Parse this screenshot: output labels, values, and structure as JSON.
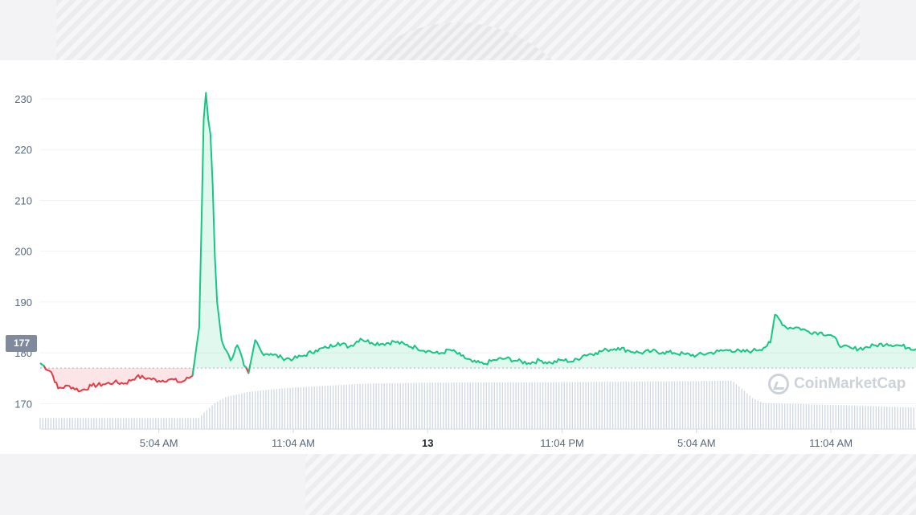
{
  "watermark": "CoinMarketCap",
  "current_price_label": "177",
  "colors": {
    "up": "#16c784",
    "down": "#ea3943",
    "grid": "#eff2f5",
    "axis_text": "#58667e",
    "volume": "#cfd6e4",
    "reference": "#a6b0c3"
  },
  "chart_data": {
    "type": "line",
    "title": "",
    "xlabel": "",
    "ylabel": "",
    "ylim": [
      165,
      233
    ],
    "y_ticks": [
      170,
      180,
      190,
      200,
      210,
      220,
      230
    ],
    "x_ticks": [
      {
        "t": 5.0,
        "label": "5:04 AM",
        "bold": false
      },
      {
        "t": 11.0,
        "label": "11:04 AM",
        "bold": false
      },
      {
        "t": 17.0,
        "label": "13",
        "bold": true
      },
      {
        "t": 23.0,
        "label": "11:04 PM",
        "bold": false
      },
      {
        "t": 29.0,
        "label": "5:04 AM",
        "bold": false
      },
      {
        "t": 35.0,
        "label": "11:04 AM",
        "bold": false
      }
    ],
    "x_range": [
      -0.3,
      38.8
    ],
    "reference_price": 177,
    "grid": true,
    "series": [
      {
        "name": "",
        "x": [
          -0.3,
          0.2,
          0.5,
          1.0,
          1.5,
          2.0,
          2.5,
          3.0,
          3.5,
          4.0,
          4.5,
          5.0,
          5.5,
          6.0,
          6.5,
          6.8,
          6.9,
          7.0,
          7.1,
          7.2,
          7.3,
          7.4,
          7.5,
          7.6,
          7.8,
          8.0,
          8.2,
          8.5,
          8.8,
          9.0,
          9.3,
          9.6,
          10.0,
          10.5,
          11.0,
          11.5,
          12.0,
          12.5,
          13.0,
          13.5,
          14.0,
          14.5,
          15.0,
          15.5,
          16.0,
          16.5,
          17.0,
          17.5,
          18.0,
          18.5,
          19.0,
          19.5,
          20.0,
          20.5,
          21.0,
          21.5,
          22.0,
          22.5,
          23.0,
          23.5,
          24.0,
          24.5,
          25.0,
          25.5,
          26.0,
          26.5,
          27.0,
          27.5,
          28.0,
          28.5,
          29.0,
          29.5,
          30.0,
          30.5,
          31.0,
          31.5,
          32.0,
          32.3,
          32.5,
          33.0,
          33.5,
          34.0,
          34.5,
          35.0,
          35.5,
          36.0,
          36.5,
          37.0,
          37.5,
          38.0,
          38.5,
          38.8
        ],
        "values": [
          178.0,
          176.2,
          173.0,
          173.5,
          172.5,
          173.5,
          173.8,
          174.2,
          174.0,
          175.3,
          175.0,
          174.5,
          174.8,
          174.2,
          175.5,
          185.0,
          205.0,
          226.0,
          231.2,
          226.0,
          223.0,
          213.0,
          199.0,
          190.0,
          182.5,
          180.5,
          178.5,
          181.5,
          177.5,
          176.0,
          182.5,
          180.0,
          179.8,
          179.0,
          178.8,
          179.5,
          180.5,
          181.0,
          182.0,
          181.2,
          182.8,
          182.0,
          181.8,
          182.2,
          181.6,
          181.0,
          180.4,
          179.8,
          180.6,
          179.4,
          178.2,
          177.8,
          178.6,
          178.9,
          178.4,
          178.0,
          178.5,
          178.0,
          178.6,
          178.3,
          179.6,
          180.0,
          180.6,
          181.0,
          180.4,
          180.0,
          180.3,
          180.1,
          180.0,
          179.7,
          179.5,
          179.9,
          180.3,
          180.6,
          180.2,
          180.4,
          181.0,
          182.0,
          187.5,
          185.0,
          185.0,
          184.2,
          184.0,
          183.5,
          181.2,
          180.8,
          181.0,
          181.5,
          181.8,
          181.5,
          181.0,
          180.8
        ]
      }
    ],
    "volume": {
      "x": [
        -0.3,
        6.8,
        7.0,
        7.5,
        8.0,
        9.0,
        10.0,
        11.0,
        12.0,
        13.0,
        14.0,
        15.0,
        16.0,
        17.0,
        18.0,
        19.0,
        20.0,
        21.0,
        22.0,
        23.0,
        24.0,
        25.0,
        26.0,
        27.0,
        28.0,
        29.0,
        30.0,
        30.6,
        31.0,
        31.5,
        32.0,
        33.0,
        34.0,
        35.0,
        36.0,
        37.0,
        38.0,
        38.8
      ],
      "values": [
        0.18,
        0.18,
        0.26,
        0.42,
        0.52,
        0.6,
        0.64,
        0.67,
        0.69,
        0.71,
        0.73,
        0.74,
        0.745,
        0.75,
        0.75,
        0.755,
        0.755,
        0.755,
        0.755,
        0.76,
        0.76,
        0.765,
        0.765,
        0.77,
        0.77,
        0.775,
        0.78,
        0.78,
        0.66,
        0.5,
        0.42,
        0.41,
        0.4,
        0.39,
        0.38,
        0.37,
        0.355,
        0.35
      ]
    }
  }
}
